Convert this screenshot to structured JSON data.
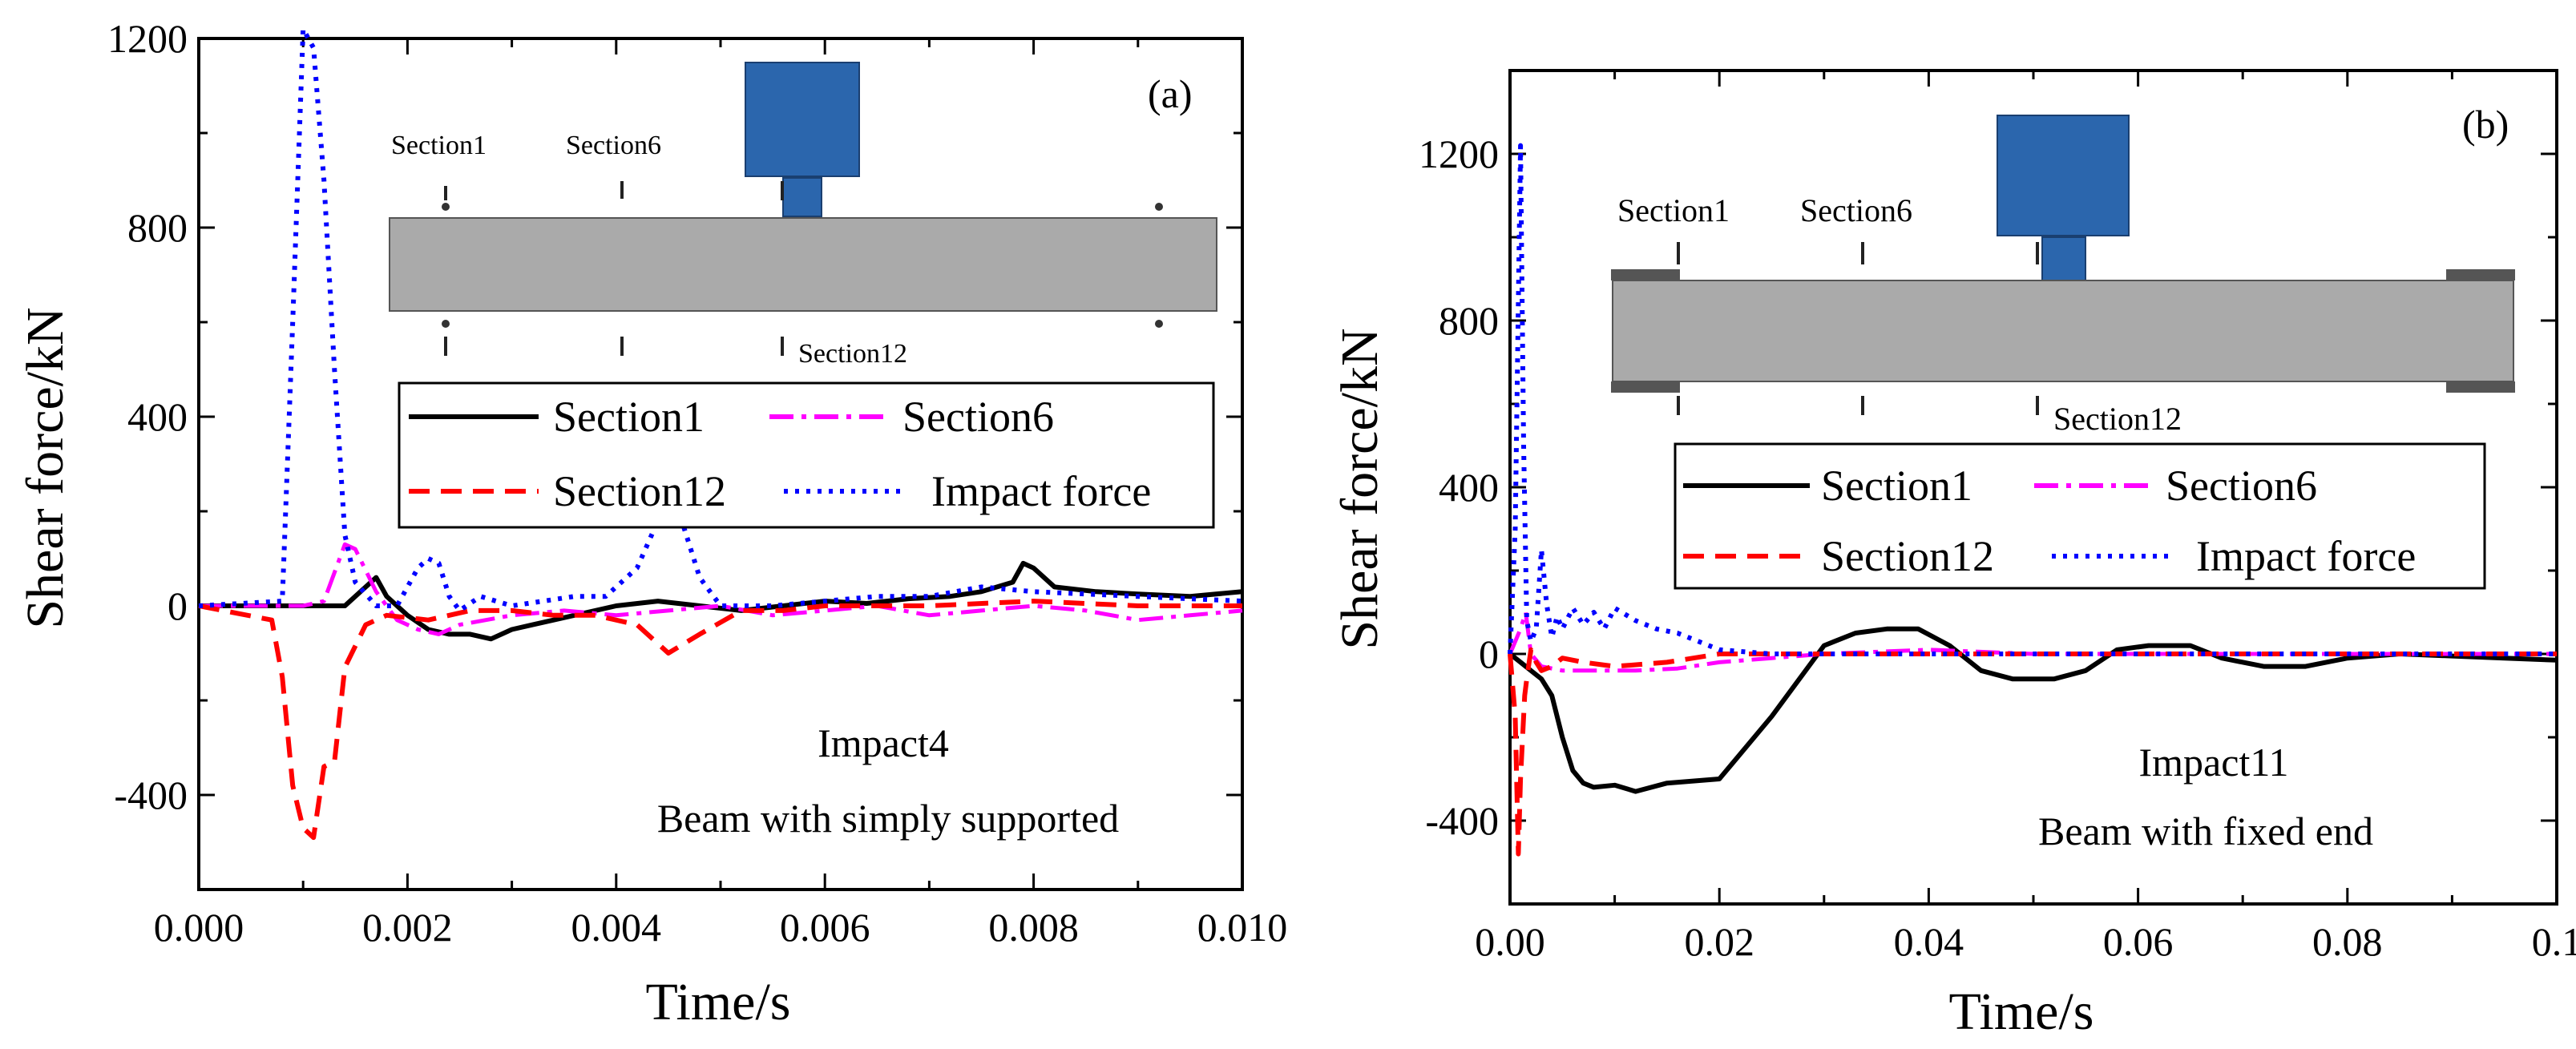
{
  "chart_data": [
    {
      "type": "line",
      "panel_label": "(a)",
      "xlabel": "Time/s",
      "ylabel": "Shear force/kN",
      "xlim": [
        0.0,
        0.01
      ],
      "ylim": [
        -600,
        1200
      ],
      "x_ticks": [
        "0.000",
        "0.002",
        "0.004",
        "0.006",
        "0.008",
        "0.010"
      ],
      "x_tick_values": [
        0.0,
        0.002,
        0.004,
        0.006,
        0.008,
        0.01
      ],
      "y_ticks": [
        "-400",
        "0",
        "400",
        "800",
        "1200"
      ],
      "y_tick_values": [
        -400,
        0,
        400,
        800,
        1200
      ],
      "annotation_lines": [
        "Impact4",
        "Beam with simply supported"
      ],
      "diagram_labels": [
        "Section1",
        "Section6",
        "Section12"
      ],
      "legend": [
        "Section1",
        "Section6",
        "Section12",
        "Impact force"
      ],
      "series": [
        {
          "name": "Section1",
          "color": "#000000",
          "dash": "solid",
          "x": [
            0,
            0.0014,
            0.0016,
            0.0017,
            0.0018,
            0.002,
            0.0022,
            0.0024,
            0.0026,
            0.0028,
            0.003,
            0.0032,
            0.0034,
            0.0036,
            0.004,
            0.0044,
            0.0048,
            0.0052,
            0.0056,
            0.006,
            0.0064,
            0.0068,
            0.0072,
            0.0075,
            0.0078,
            0.0079,
            0.008,
            0.0082,
            0.0086,
            0.009,
            0.0095,
            0.01
          ],
          "y": [
            0,
            0,
            40,
            60,
            20,
            -20,
            -50,
            -60,
            -60,
            -70,
            -50,
            -40,
            -30,
            -20,
            0,
            10,
            0,
            -10,
            0,
            10,
            5,
            15,
            20,
            30,
            50,
            90,
            80,
            40,
            30,
            25,
            20,
            30
          ]
        },
        {
          "name": "Section6",
          "color": "#ff00ff",
          "dash": "dashdot",
          "x": [
            0,
            0.001,
            0.0012,
            0.0014,
            0.0015,
            0.0017,
            0.0019,
            0.0021,
            0.0023,
            0.0025,
            0.003,
            0.0035,
            0.004,
            0.0045,
            0.005,
            0.0055,
            0.006,
            0.0065,
            0.007,
            0.0075,
            0.008,
            0.0085,
            0.009,
            0.0095,
            0.01
          ],
          "y": [
            0,
            0,
            10,
            130,
            120,
            30,
            -30,
            -50,
            -60,
            -40,
            -20,
            -10,
            -20,
            -10,
            0,
            -20,
            -10,
            0,
            -20,
            -10,
            0,
            -10,
            -30,
            -20,
            -10
          ]
        },
        {
          "name": "Section12",
          "color": "#ff0000",
          "dash": "dashed",
          "x": [
            0,
            0.0007,
            0.0008,
            0.0009,
            0.001,
            0.0011,
            0.0012,
            0.0013,
            0.0014,
            0.0016,
            0.0018,
            0.0022,
            0.0026,
            0.003,
            0.0034,
            0.0038,
            0.0042,
            0.0044,
            0.0045,
            0.0048,
            0.0052,
            0.0056,
            0.006,
            0.0065,
            0.007,
            0.008,
            0.009,
            0.01
          ],
          "y": [
            0,
            -30,
            -150,
            -380,
            -470,
            -490,
            -340,
            -330,
            -130,
            -40,
            -20,
            -30,
            -10,
            -10,
            -20,
            -20,
            -40,
            -80,
            -100,
            -60,
            -10,
            -10,
            0,
            0,
            0,
            10,
            0,
            0
          ]
        },
        {
          "name": "Impact force",
          "color": "#0000ff",
          "dash": "dotted",
          "x": [
            0,
            0.0008,
            0.0009,
            0.001,
            0.0011,
            0.0012,
            0.0013,
            0.0014,
            0.0015,
            0.0017,
            0.0019,
            0.0021,
            0.0022,
            0.0023,
            0.0024,
            0.0025,
            0.0027,
            0.003,
            0.0033,
            0.0036,
            0.0039,
            0.0042,
            0.0044,
            0.0045,
            0.0046,
            0.0048,
            0.005,
            0.0055,
            0.006,
            0.0065,
            0.007,
            0.0075,
            0.008,
            0.009,
            0.01
          ],
          "y": [
            0,
            10,
            600,
            1220,
            1180,
            900,
            500,
            150,
            50,
            0,
            0,
            80,
            100,
            90,
            20,
            -10,
            20,
            0,
            10,
            20,
            20,
            80,
            180,
            230,
            200,
            60,
            0,
            0,
            10,
            20,
            20,
            40,
            30,
            20,
            10
          ]
        }
      ]
    },
    {
      "type": "line",
      "panel_label": "(b)",
      "xlabel": "Time/s",
      "ylabel": "Shear force/kN",
      "xlim": [
        0.0,
        0.1
      ],
      "ylim": [
        -600,
        1400
      ],
      "x_ticks": [
        "0.00",
        "0.02",
        "0.04",
        "0.06",
        "0.08",
        "0.1"
      ],
      "x_tick_values": [
        0.0,
        0.02,
        0.04,
        0.06,
        0.08,
        0.1
      ],
      "y_ticks": [
        "-400",
        "0",
        "400",
        "800",
        "1200"
      ],
      "y_tick_values": [
        -400,
        0,
        400,
        800,
        1200
      ],
      "annotation_lines": [
        "Impact11",
        "Beam with fixed end"
      ],
      "diagram_labels": [
        "Section1",
        "Section6",
        "Section12"
      ],
      "legend": [
        "Section1",
        "Section6",
        "Section12",
        "Impact force"
      ],
      "series": [
        {
          "name": "Section1",
          "color": "#000000",
          "dash": "solid",
          "x": [
            0,
            0.001,
            0.002,
            0.003,
            0.004,
            0.005,
            0.006,
            0.007,
            0.008,
            0.01,
            0.012,
            0.015,
            0.02,
            0.025,
            0.03,
            0.033,
            0.036,
            0.039,
            0.042,
            0.045,
            0.048,
            0.052,
            0.055,
            0.058,
            0.061,
            0.065,
            0.068,
            0.072,
            0.076,
            0.08,
            0.085,
            0.09,
            0.095,
            0.1
          ],
          "y": [
            0,
            -20,
            -40,
            -60,
            -100,
            -200,
            -280,
            -310,
            -320,
            -315,
            -330,
            -310,
            -300,
            -150,
            20,
            50,
            60,
            60,
            20,
            -40,
            -60,
            -60,
            -40,
            10,
            20,
            20,
            -10,
            -30,
            -30,
            -10,
            0,
            -5,
            -10,
            -15
          ]
        },
        {
          "name": "Section6",
          "color": "#ff00ff",
          "dash": "dashdot",
          "x": [
            0,
            0.001,
            0.0015,
            0.002,
            0.003,
            0.005,
            0.008,
            0.012,
            0.016,
            0.02,
            0.025,
            0.03,
            0.04,
            0.05,
            0.06,
            0.07,
            0.08,
            0.09,
            0.1
          ],
          "y": [
            0,
            60,
            100,
            0,
            -30,
            -40,
            -40,
            -40,
            -35,
            -20,
            -10,
            0,
            10,
            0,
            0,
            0,
            0,
            0,
            0
          ]
        },
        {
          "name": "Section12",
          "color": "#ff0000",
          "dash": "dashed",
          "x": [
            0,
            0.0005,
            0.0008,
            0.001,
            0.0012,
            0.0014,
            0.0016,
            0.002,
            0.0025,
            0.003,
            0.004,
            0.005,
            0.007,
            0.01,
            0.015,
            0.02,
            0.03,
            0.04,
            0.06,
            0.08,
            0.1
          ],
          "y": [
            0,
            -150,
            -480,
            -300,
            -200,
            -100,
            -60,
            10,
            -20,
            -40,
            -30,
            -10,
            -20,
            -30,
            -20,
            0,
            0,
            0,
            0,
            0,
            0
          ]
        },
        {
          "name": "Impact force",
          "color": "#0000ff",
          "dash": "dotted",
          "x": [
            0,
            0.0005,
            0.001,
            0.0013,
            0.0016,
            0.002,
            0.0025,
            0.003,
            0.0035,
            0.004,
            0.0045,
            0.005,
            0.006,
            0.007,
            0.008,
            0.009,
            0.01,
            0.012,
            0.014,
            0.016,
            0.018,
            0.02,
            0.025,
            0.03,
            0.04,
            0.06,
            0.08,
            0.1
          ],
          "y": [
            0,
            300,
            1220,
            500,
            80,
            30,
            60,
            250,
            120,
            40,
            90,
            60,
            110,
            70,
            100,
            60,
            110,
            80,
            60,
            50,
            30,
            10,
            0,
            0,
            0,
            0,
            0,
            0
          ]
        }
      ]
    }
  ]
}
